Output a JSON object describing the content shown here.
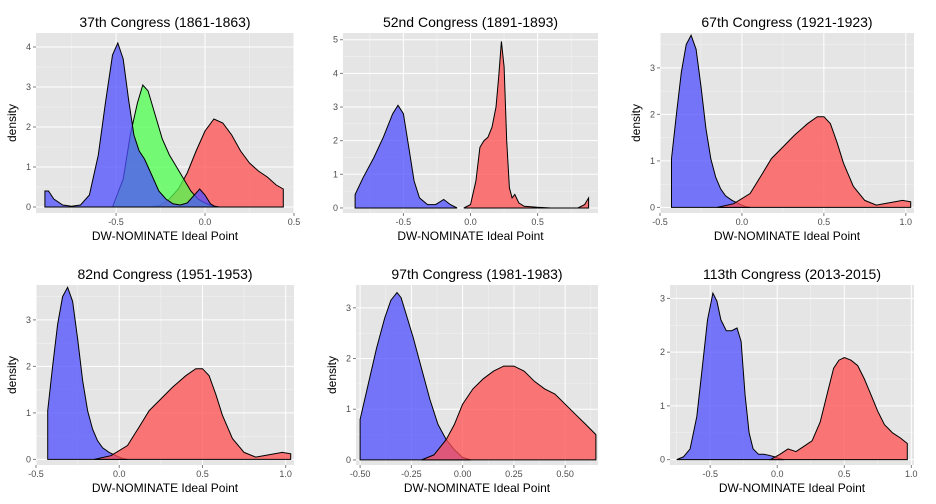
{
  "colors": {
    "blue": "#4d4dff",
    "red": "#ff4d4d",
    "green": "#4dff4d",
    "olive": "#b0a020"
  },
  "chart_data": [
    {
      "type": "area",
      "title": "37th Congress (1861-1863)",
      "xlabel": "DW-NOMINATE Ideal Point",
      "ylabel": "density",
      "xlim": [
        -0.95,
        0.5
      ],
      "ylim": [
        -0.15,
        4.35
      ],
      "xticks": [
        -0.5,
        0.0,
        0.5
      ],
      "xtick_labels": [
        "-0.5",
        "0.0",
        "0.5"
      ],
      "yticks": [
        0,
        1,
        2,
        3,
        4
      ],
      "ytick_labels": [
        "0",
        "1",
        "2",
        "3",
        "4"
      ],
      "grid": true,
      "series": [
        {
          "color": "#ff4d4d",
          "x": [
            -0.3,
            -0.25,
            -0.2,
            -0.15,
            -0.1,
            -0.05,
            0.0,
            0.05,
            0.1,
            0.15,
            0.2,
            0.25,
            0.3,
            0.35,
            0.4,
            0.44
          ],
          "y": [
            0,
            0.05,
            0.2,
            0.45,
            0.85,
            1.4,
            1.9,
            2.2,
            2.1,
            1.8,
            1.4,
            1.1,
            0.9,
            0.75,
            0.55,
            0.45
          ]
        },
        {
          "color": "#4dff4d",
          "x": [
            -0.52,
            -0.46,
            -0.42,
            -0.38,
            -0.35,
            -0.32,
            -0.28,
            -0.24,
            -0.2,
            -0.16,
            -0.12,
            -0.08,
            -0.04,
            0.0,
            0.04,
            0.08
          ],
          "y": [
            0,
            0.7,
            1.8,
            2.6,
            3.05,
            2.9,
            2.3,
            1.7,
            1.3,
            1.0,
            0.7,
            0.4,
            0.2,
            0.1,
            0.03,
            0
          ]
        },
        {
          "color": "#4d4dff",
          "x": [
            -0.9,
            -0.88,
            -0.85,
            -0.8,
            -0.75,
            -0.7,
            -0.65,
            -0.6,
            -0.56,
            -0.52,
            -0.49,
            -0.46,
            -0.43,
            -0.4,
            -0.37,
            -0.34,
            -0.3,
            -0.26,
            -0.22,
            -0.18,
            -0.14,
            -0.1,
            -0.06,
            -0.03,
            0.0,
            0.03,
            0.06
          ],
          "y": [
            0.4,
            0.4,
            0.2,
            0.05,
            0.02,
            0.05,
            0.3,
            1.3,
            2.6,
            3.8,
            4.1,
            3.7,
            2.7,
            1.8,
            1.4,
            1.2,
            0.8,
            0.4,
            0.2,
            0.08,
            0.05,
            0.1,
            0.3,
            0.45,
            0.3,
            0.08,
            0
          ]
        }
      ]
    },
    {
      "type": "area",
      "title": "52nd Congress (1891-1893)",
      "xlabel": "DW-NOMINATE Ideal Point",
      "ylabel": "",
      "xlim": [
        -0.95,
        0.95
      ],
      "ylim": [
        -0.15,
        5.2
      ],
      "xticks": [
        -0.5,
        0.0,
        0.5
      ],
      "xtick_labels": [
        "-0.5",
        "0.0",
        "0.5"
      ],
      "yticks": [
        0,
        1,
        2,
        3,
        4,
        5
      ],
      "ytick_labels": [
        "0",
        "1",
        "2",
        "3",
        "4",
        "5"
      ],
      "grid": true,
      "series": [
        {
          "color": "#4d4dff",
          "x": [
            -0.86,
            -0.8,
            -0.72,
            -0.65,
            -0.58,
            -0.54,
            -0.5,
            -0.46,
            -0.42,
            -0.38,
            -0.32,
            -0.26,
            -0.2,
            -0.15,
            -0.1
          ],
          "y": [
            0.4,
            0.9,
            1.5,
            2.1,
            2.8,
            3.05,
            2.8,
            1.8,
            0.8,
            0.3,
            0.1,
            0.1,
            0.25,
            0.1,
            0
          ]
        },
        {
          "color": "#ff4d4d",
          "x": [
            -0.05,
            0.0,
            0.04,
            0.07,
            0.1,
            0.13,
            0.16,
            0.19,
            0.21,
            0.23,
            0.25,
            0.27,
            0.29,
            0.31,
            0.33,
            0.36,
            0.4,
            0.5,
            0.6,
            0.7,
            0.8,
            0.85,
            0.88
          ],
          "y": [
            0,
            0.1,
            0.8,
            1.8,
            2.0,
            2.1,
            2.4,
            3.0,
            3.9,
            4.95,
            4.2,
            2.0,
            0.6,
            0.3,
            0.4,
            0.15,
            0.05,
            0.02,
            0,
            0,
            0,
            0.1,
            0.3
          ]
        }
      ]
    },
    {
      "type": "area",
      "title": "67th Congress (1921-1923)",
      "xlabel": "DW-NOMINATE Ideal Point",
      "ylabel": "density",
      "xlim": [
        -0.5,
        1.05
      ],
      "ylim": [
        -0.12,
        3.75
      ],
      "xticks": [
        -0.5,
        0.0,
        0.5,
        1.0
      ],
      "xtick_labels": [
        "-0.5",
        "0.0",
        "0.5",
        "1.0"
      ],
      "yticks": [
        0,
        1,
        2,
        3
      ],
      "ytick_labels": [
        "0",
        "1",
        "2",
        "3"
      ],
      "grid": true,
      "series": [
        {
          "color": "#4d4dff",
          "x": [
            -0.43,
            -0.43,
            -0.4,
            -0.37,
            -0.34,
            -0.31,
            -0.28,
            -0.25,
            -0.22,
            -0.19,
            -0.16,
            -0.13,
            -0.1,
            -0.06,
            -0.02,
            0.02,
            0.05
          ],
          "y": [
            0,
            1.05,
            2.0,
            2.9,
            3.5,
            3.7,
            3.4,
            2.6,
            1.7,
            1.05,
            0.65,
            0.4,
            0.25,
            0.15,
            0.08,
            0.02,
            0
          ]
        },
        {
          "color": "#ff4d4d",
          "x": [
            -0.15,
            -0.05,
            0.05,
            0.12,
            0.18,
            0.25,
            0.32,
            0.4,
            0.46,
            0.5,
            0.54,
            0.58,
            0.62,
            0.68,
            0.75,
            0.82,
            0.9,
            0.98,
            1.03,
            1.03
          ],
          "y": [
            0,
            0.08,
            0.3,
            0.7,
            1.05,
            1.3,
            1.55,
            1.8,
            1.95,
            1.95,
            1.8,
            1.4,
            0.95,
            0.45,
            0.15,
            0.05,
            0.1,
            0.15,
            0.12,
            0
          ]
        }
      ]
    },
    {
      "type": "area",
      "title": "82nd Congress (1951-1953)",
      "xlabel": "DW-NOMINATE Ideal Point",
      "ylabel": "density",
      "xlim": [
        -0.5,
        1.05
      ],
      "ylim": [
        -0.12,
        3.75
      ],
      "xticks": [
        -0.5,
        0.0,
        0.5,
        1.0
      ],
      "xtick_labels": [
        "-0.5",
        "0.0",
        "0.5",
        "1.0"
      ],
      "yticks": [
        0,
        1,
        2,
        3
      ],
      "ytick_labels": [
        "0",
        "1",
        "2",
        "3"
      ],
      "grid": true,
      "series": [
        {
          "color": "#4d4dff",
          "x": [
            -0.43,
            -0.43,
            -0.4,
            -0.37,
            -0.34,
            -0.31,
            -0.28,
            -0.25,
            -0.22,
            -0.19,
            -0.16,
            -0.13,
            -0.1,
            -0.06,
            -0.02,
            0.02,
            0.05
          ],
          "y": [
            0,
            1.05,
            2.0,
            2.9,
            3.5,
            3.7,
            3.4,
            2.6,
            1.7,
            1.05,
            0.65,
            0.4,
            0.25,
            0.15,
            0.08,
            0.02,
            0
          ]
        },
        {
          "color": "#ff4d4d",
          "x": [
            -0.15,
            -0.05,
            0.05,
            0.12,
            0.18,
            0.25,
            0.32,
            0.4,
            0.46,
            0.5,
            0.54,
            0.58,
            0.62,
            0.68,
            0.75,
            0.82,
            0.9,
            0.98,
            1.03,
            1.03
          ],
          "y": [
            0,
            0.08,
            0.3,
            0.7,
            1.05,
            1.3,
            1.55,
            1.8,
            1.95,
            1.95,
            1.8,
            1.4,
            0.95,
            0.45,
            0.15,
            0.05,
            0.1,
            0.15,
            0.12,
            0
          ]
        }
      ]
    },
    {
      "type": "area",
      "title": "97th Congress (1981-1983)",
      "xlabel": "DW-NOMINATE Ideal Point",
      "ylabel": "density",
      "xlim": [
        -0.52,
        0.66
      ],
      "ylim": [
        -0.1,
        3.45
      ],
      "xticks": [
        -0.5,
        -0.25,
        0.0,
        0.25,
        0.5
      ],
      "xtick_labels": [
        "-0.50",
        "-0.25",
        "0.00",
        "0.25",
        "0.50"
      ],
      "yticks": [
        0,
        1,
        2,
        3
      ],
      "ytick_labels": [
        "0",
        "1",
        "2",
        "3"
      ],
      "grid": true,
      "series": [
        {
          "color": "#4d4dff",
          "x": [
            -0.5,
            -0.5,
            -0.46,
            -0.42,
            -0.38,
            -0.35,
            -0.32,
            -0.3,
            -0.27,
            -0.24,
            -0.2,
            -0.16,
            -0.12,
            -0.08,
            -0.04,
            0.0,
            0.04
          ],
          "y": [
            0,
            0.8,
            1.5,
            2.2,
            2.8,
            3.15,
            3.3,
            3.2,
            2.8,
            2.4,
            1.8,
            1.2,
            0.7,
            0.4,
            0.2,
            0.05,
            0
          ]
        },
        {
          "color": "#ff4d4d",
          "x": [
            -0.2,
            -0.14,
            -0.08,
            -0.04,
            0.0,
            0.05,
            0.1,
            0.15,
            0.2,
            0.25,
            0.3,
            0.35,
            0.4,
            0.45,
            0.5,
            0.55,
            0.6,
            0.65,
            0.65
          ],
          "y": [
            0,
            0.1,
            0.4,
            0.7,
            1.1,
            1.4,
            1.6,
            1.75,
            1.85,
            1.85,
            1.75,
            1.55,
            1.4,
            1.3,
            1.1,
            0.9,
            0.7,
            0.5,
            0
          ]
        }
      ]
    },
    {
      "type": "area",
      "title": "113th Congress (2013-2015)",
      "xlabel": "DW-NOMINATE Ideal Point",
      "ylabel": "",
      "xlim": [
        -0.8,
        1.02
      ],
      "ylim": [
        -0.1,
        3.25
      ],
      "xticks": [
        -0.5,
        0.0,
        0.5,
        1.0
      ],
      "xtick_labels": [
        "-0.5",
        "0.0",
        "0.5",
        "1.0"
      ],
      "yticks": [
        0,
        1,
        2,
        3
      ],
      "ytick_labels": [
        "0",
        "1",
        "2",
        "3"
      ],
      "grid": true,
      "series": [
        {
          "color": "#4d4dff",
          "x": [
            -0.75,
            -0.7,
            -0.65,
            -0.6,
            -0.56,
            -0.52,
            -0.48,
            -0.45,
            -0.42,
            -0.38,
            -0.34,
            -0.3,
            -0.27,
            -0.24,
            -0.21,
            -0.18,
            -0.14,
            -0.1,
            -0.06,
            -0.02,
            0.02,
            0.05
          ],
          "y": [
            0,
            0.05,
            0.2,
            0.8,
            1.7,
            2.6,
            3.1,
            2.95,
            2.6,
            2.4,
            2.4,
            2.45,
            2.2,
            1.2,
            0.5,
            0.2,
            0.1,
            0.1,
            0.08,
            0.05,
            0.02,
            0
          ]
        },
        {
          "color": "#ff4d4d",
          "x": [
            -0.05,
            0.02,
            0.08,
            0.14,
            0.2,
            0.26,
            0.32,
            0.38,
            0.42,
            0.46,
            0.5,
            0.55,
            0.6,
            0.65,
            0.7,
            0.75,
            0.8,
            0.86,
            0.92,
            0.97,
            0.97
          ],
          "y": [
            0,
            0.1,
            0.2,
            0.15,
            0.25,
            0.35,
            0.7,
            1.3,
            1.7,
            1.85,
            1.9,
            1.85,
            1.75,
            1.5,
            1.2,
            0.9,
            0.65,
            0.5,
            0.4,
            0.3,
            0
          ]
        }
      ]
    }
  ]
}
